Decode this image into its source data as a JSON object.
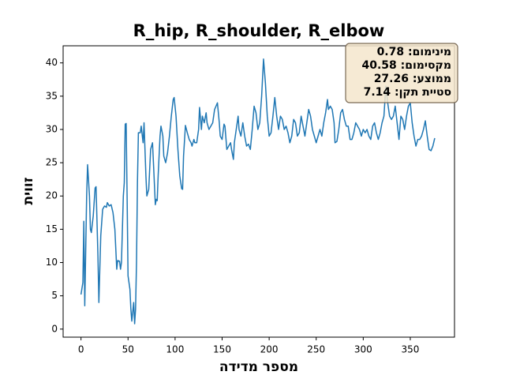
{
  "chart_data": {
    "type": "line",
    "title": "R_hip, R_shoulder, R_elbow",
    "x_label": "מספר מדידה",
    "y_label": "זווית",
    "stats": [
      "מינימום: 0.78",
      "מקסימום: 40.58",
      "ממוצע: 27.26",
      "סטיית תקן: 7.14"
    ],
    "color": "#1f77b4",
    "xlim": [
      -19,
      397
    ],
    "ylim": [
      -1.21,
      42.57
    ],
    "xticks": [
      0,
      50,
      100,
      150,
      200,
      250,
      300,
      350
    ],
    "yticks": [
      0,
      5,
      10,
      15,
      20,
      25,
      30,
      35,
      40
    ],
    "x": [
      0,
      2,
      3,
      4,
      6,
      7,
      9,
      10,
      11,
      13,
      15,
      16,
      18,
      19,
      21,
      23,
      25,
      27,
      28,
      30,
      32,
      34,
      36,
      37,
      38,
      39,
      41,
      42,
      43,
      45,
      46,
      47,
      48,
      49,
      50,
      52,
      53,
      54,
      56,
      57,
      58,
      59,
      60,
      61,
      63,
      64,
      66,
      67,
      69,
      70,
      72,
      74,
      76,
      77,
      79,
      80,
      81,
      82,
      84,
      85,
      87,
      88,
      90,
      92,
      94,
      96,
      98,
      99,
      101,
      103,
      105,
      107,
      108,
      109,
      111,
      113,
      115,
      117,
      118,
      120,
      121,
      123,
      125,
      126,
      128,
      129,
      131,
      133,
      134,
      136,
      138,
      140,
      142,
      145,
      147,
      148,
      150,
      152,
      153,
      155,
      157,
      159,
      160,
      162,
      163,
      165,
      167,
      168,
      170,
      172,
      174,
      176,
      178,
      180,
      182,
      184,
      186,
      188,
      190,
      192,
      194,
      196,
      198,
      200,
      202,
      204,
      206,
      208,
      210,
      212,
      214,
      216,
      218,
      220,
      222,
      224,
      226,
      228,
      230,
      232,
      234,
      236,
      238,
      240,
      242,
      244,
      246,
      248,
      250,
      252,
      254,
      256,
      258,
      260,
      262,
      263,
      265,
      267,
      269,
      270,
      272,
      274,
      276,
      278,
      280,
      282,
      284,
      286,
      288,
      290,
      292,
      294,
      296,
      298,
      300,
      302,
      304,
      306,
      308,
      310,
      312,
      314,
      316,
      318,
      320,
      322,
      324,
      326,
      328,
      330,
      332,
      334,
      336,
      338,
      340,
      342,
      344,
      346,
      348,
      350,
      352,
      354,
      356,
      358,
      360,
      362,
      364,
      366,
      368,
      370,
      372,
      374,
      376
    ],
    "values": [
      5.2,
      7,
      16.2,
      3.5,
      20,
      24.7,
      20,
      15,
      14.5,
      17,
      21.2,
      21.4,
      11,
      4,
      14,
      18,
      18.5,
      18.3,
      19,
      18.5,
      18.7,
      17.5,
      15,
      12,
      9,
      10.3,
      10.2,
      9,
      10,
      20,
      22,
      30.8,
      30.9,
      20,
      8,
      6,
      3,
      1.2,
      4,
      0.8,
      3,
      10,
      22,
      29.5,
      29.5,
      30.5,
      28,
      31,
      23,
      20,
      21,
      27,
      28,
      25,
      18.7,
      19.5,
      19.3,
      23,
      29,
      30.5,
      29,
      26,
      25,
      26.5,
      29,
      32,
      34.5,
      34.8,
      32,
      27,
      23,
      21.1,
      21,
      26,
      30.6,
      29.5,
      28.5,
      28,
      27.5,
      28.5,
      28,
      28,
      30,
      33.3,
      30,
      32,
      31,
      32.5,
      31,
      30,
      30.5,
      31,
      33,
      34,
      31,
      29,
      28.5,
      30.8,
      30.5,
      27,
      27.5,
      28,
      27,
      25.5,
      28,
      30,
      32,
      30,
      29,
      31,
      29,
      27.5,
      27.8,
      27,
      30,
      33.5,
      32.5,
      30,
      31,
      35,
      40.58,
      37,
      32,
      29,
      29.5,
      32,
      34.8,
      32,
      30,
      32,
      31.5,
      30,
      30.5,
      29.5,
      28,
      29,
      31.5,
      31,
      29,
      29.5,
      32,
      30.5,
      29,
      31,
      33,
      32,
      30,
      29,
      28,
      29,
      30,
      29,
      31,
      32.5,
      34.5,
      33,
      33.5,
      33,
      31,
      28,
      28.2,
      30,
      32.5,
      33,
      31.5,
      30.5,
      30.5,
      28.5,
      28.5,
      29.5,
      31,
      30.5,
      30,
      29,
      30,
      29.5,
      30,
      29,
      28.5,
      30.5,
      31,
      29.5,
      28.5,
      29.5,
      31,
      32,
      36.5,
      34,
      32,
      31.5,
      32,
      33.5,
      31,
      28.5,
      32,
      31.5,
      30,
      32,
      33.5,
      34,
      31,
      29,
      27.5,
      28.5,
      28.5,
      29,
      30,
      31.3,
      29,
      27,
      26.8,
      27.5,
      28.7
    ]
  }
}
